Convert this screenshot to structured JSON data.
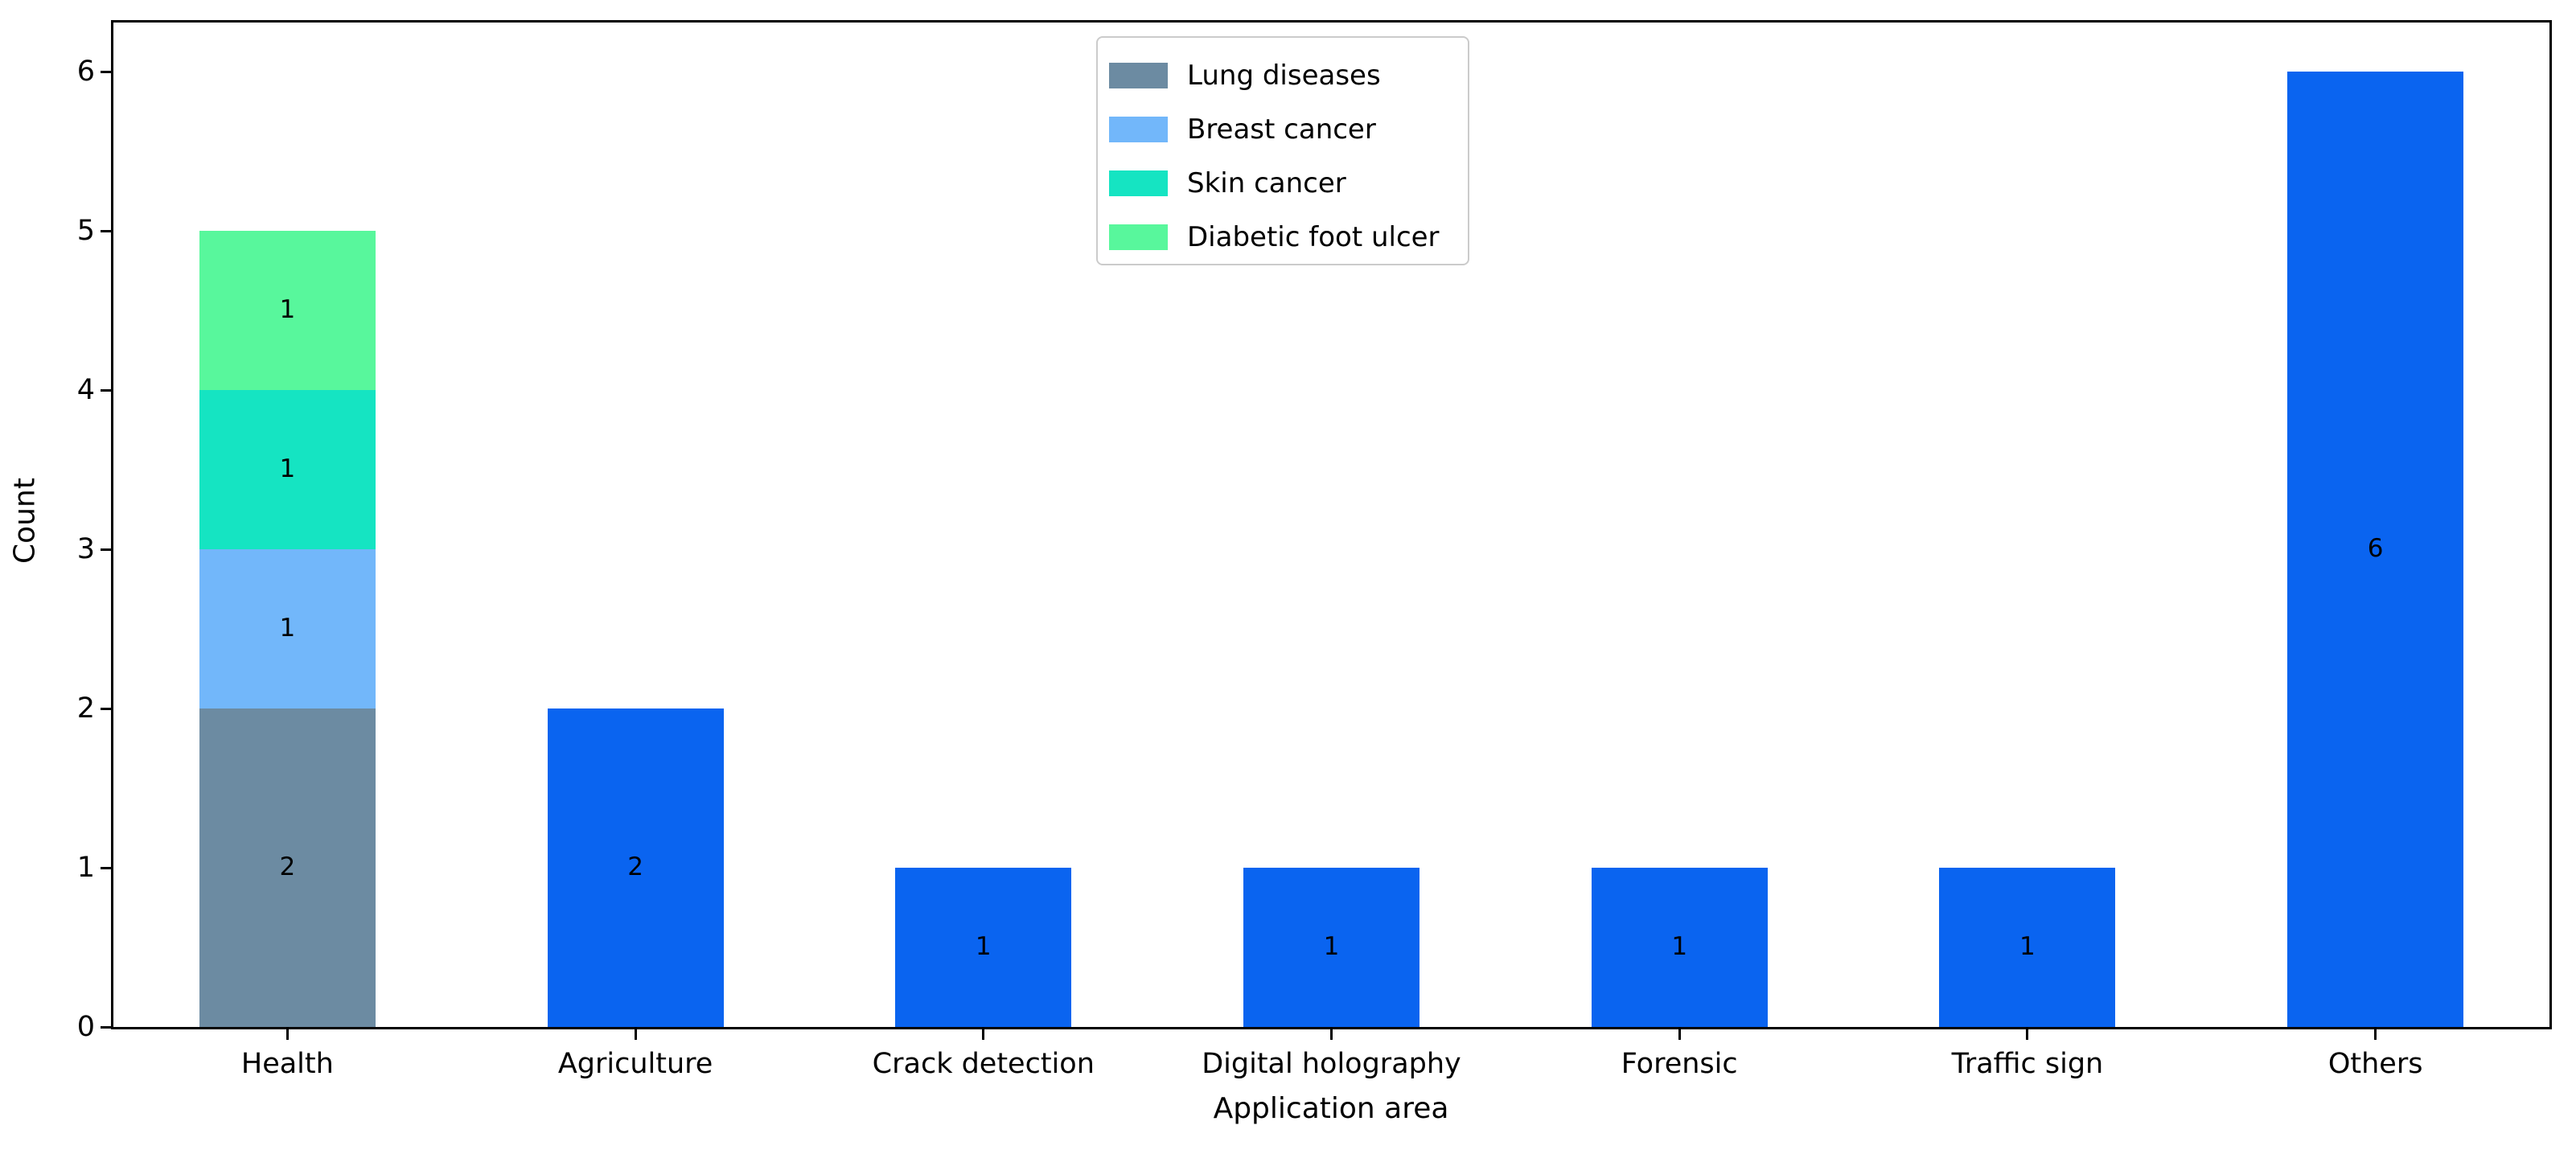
{
  "chart_data": {
    "type": "bar",
    "stacked": true,
    "title": "",
    "xlabel": "Application area",
    "ylabel": "Count",
    "grid": false,
    "legend_position": "upper center",
    "yticks": [
      0,
      1,
      2,
      3,
      4,
      5,
      6
    ],
    "ylim": [
      0,
      6.31
    ],
    "categories": [
      "Health",
      "Agriculture",
      "Crack detection",
      "Digital holography",
      "Forensic",
      "Traffic sign",
      "Others"
    ],
    "totals": [
      5,
      2,
      1,
      1,
      1,
      1,
      6
    ],
    "default_bar_color": "#0a64f0",
    "legend_entries": [
      {
        "label": "Lung diseases",
        "color": "#6c8ba2"
      },
      {
        "label": "Breast cancer",
        "color": "#72b7fa"
      },
      {
        "label": "Skin cancer",
        "color": "#15e4c2"
      },
      {
        "label": "Diabetic foot ulcer",
        "color": "#58f79c"
      }
    ],
    "bars": [
      {
        "category": "Health",
        "segments": [
          {
            "series": "Lung diseases",
            "value": 2,
            "label": "2"
          },
          {
            "series": "Breast cancer",
            "value": 1,
            "label": "1"
          },
          {
            "series": "Skin cancer",
            "value": 1,
            "label": "1"
          },
          {
            "series": "Diabetic foot ulcer",
            "value": 1,
            "label": "1"
          }
        ]
      },
      {
        "category": "Agriculture",
        "segments": [
          {
            "series": "",
            "value": 2,
            "label": "2"
          }
        ]
      },
      {
        "category": "Crack detection",
        "segments": [
          {
            "series": "",
            "value": 1,
            "label": "1"
          }
        ]
      },
      {
        "category": "Digital holography",
        "segments": [
          {
            "series": "",
            "value": 1,
            "label": "1"
          }
        ]
      },
      {
        "category": "Forensic",
        "segments": [
          {
            "series": "",
            "value": 1,
            "label": "1"
          }
        ]
      },
      {
        "category": "Traffic sign",
        "segments": [
          {
            "series": "",
            "value": 1,
            "label": "1"
          }
        ]
      },
      {
        "category": "Others",
        "segments": [
          {
            "series": "",
            "value": 6,
            "label": "6"
          }
        ]
      }
    ]
  }
}
